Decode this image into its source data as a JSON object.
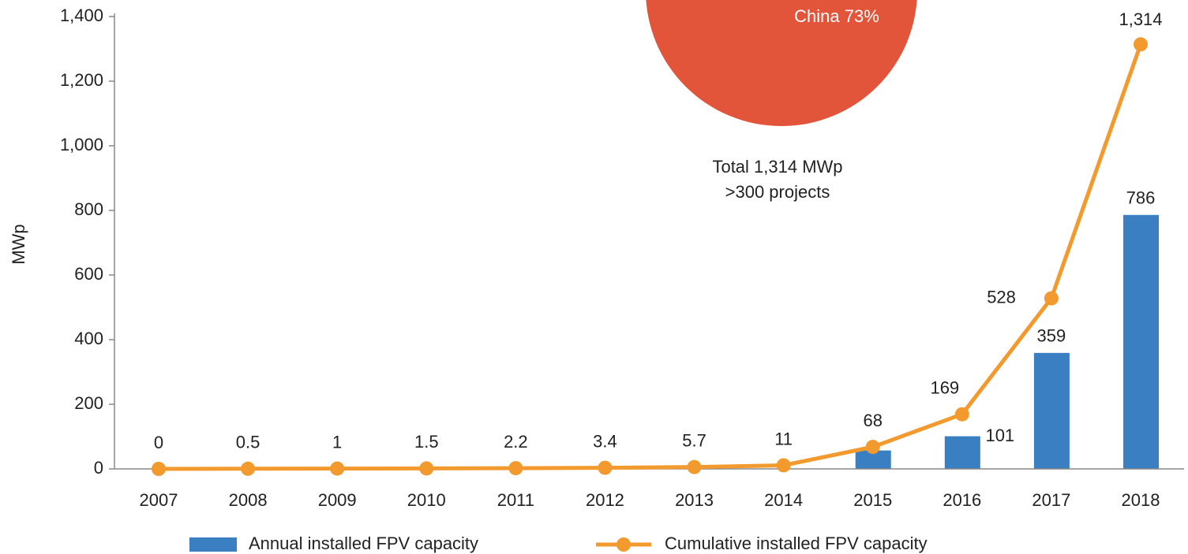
{
  "chart_data": {
    "type": "combo",
    "y_label": "MWp",
    "categories": [
      "2007",
      "2008",
      "2009",
      "2010",
      "2011",
      "2012",
      "2013",
      "2014",
      "2015",
      "2016",
      "2017",
      "2018"
    ],
    "ylim": [
      0,
      1400
    ],
    "yticks": [
      0,
      200,
      400,
      600,
      800,
      {
        "value": 1000,
        "label": "1,000"
      },
      {
        "value": 1200,
        "label": "1,200"
      },
      {
        "value": 1400,
        "label": "1,400"
      }
    ],
    "series": [
      {
        "name": "Annual installed FPV capacity",
        "type": "bar",
        "color": "#3a7fc1",
        "values": [
          null,
          null,
          null,
          null,
          null,
          null,
          null,
          null,
          57,
          101,
          359,
          786
        ],
        "value_labels": [
          null,
          null,
          null,
          null,
          null,
          null,
          null,
          null,
          null,
          "101",
          "359",
          "786"
        ]
      },
      {
        "name": "Cumulative installed FPV capacity",
        "type": "line",
        "color": "#f39a2e",
        "values": [
          0,
          0.5,
          1,
          1.5,
          2.2,
          3.4,
          5.7,
          11,
          68,
          169,
          528,
          1314
        ],
        "value_labels": [
          "0",
          "0.5",
          "1",
          "1.5",
          "2.2",
          "3.4",
          "5.7",
          "11",
          "68",
          "169",
          "528",
          "1,314"
        ]
      }
    ],
    "annotations": [
      "Total 1,314 MWp",
      ">300 projects"
    ],
    "inset": {
      "type": "pie",
      "categories": [
        "China"
      ],
      "values": [
        73
      ],
      "value_labels": [
        "73%"
      ],
      "color": "#e2553b"
    }
  }
}
